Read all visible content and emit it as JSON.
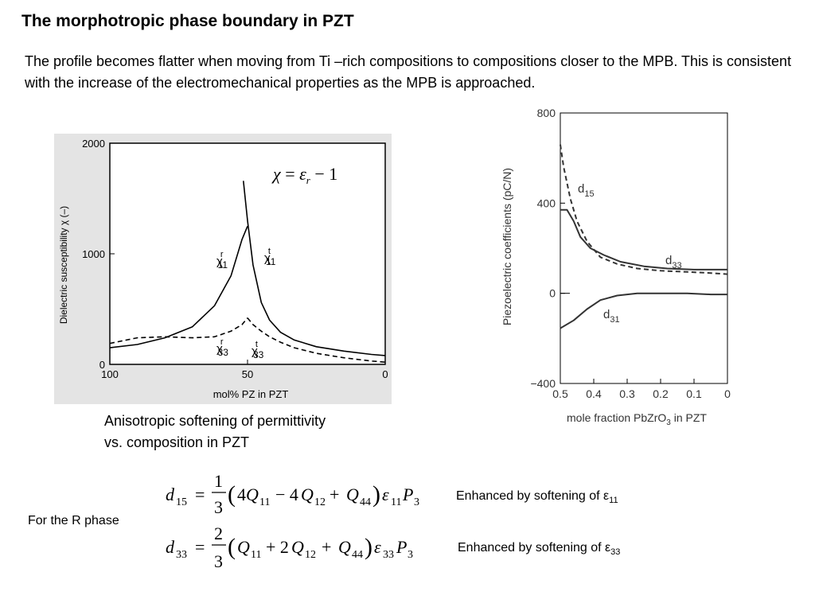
{
  "slide": {
    "title": "The morphotropic phase boundary in PZT",
    "paragraph": "The profile becomes flatter when moving from  Ti –rich compositions to  compositions closer to the MPB. This is consistent with the increase of the electromechanical properties as the MPB is approached.",
    "caption_line1": "Anisotropic softening of permittivity",
    "caption_line2": "vs. composition in PZT",
    "r_phase_label": "For the R phase",
    "note1": "Enhanced by softening of ε",
    "note1_sub": "11",
    "note2": "Enhanced by softening of ε",
    "note2_sub": "33"
  },
  "chart_data": [
    {
      "type": "line",
      "xlabel": "mol% PZ in PZT",
      "ylabel": "Dielectric susceptibility χ (–)",
      "xlim": [
        100,
        0
      ],
      "ylim": [
        0,
        2000
      ],
      "xticks": [
        "100",
        "50",
        "0"
      ],
      "yticks": [
        "0",
        "1000",
        "2000"
      ],
      "annotation": "χ = εr − 1",
      "series": [
        {
          "name": "χ11r",
          "style": "solid",
          "x": [
            100,
            90,
            80,
            70,
            62,
            56,
            52,
            50
          ],
          "y": [
            150,
            180,
            240,
            340,
            530,
            800,
            1130,
            1250
          ]
        },
        {
          "name": "χ11t",
          "style": "solid",
          "x": [
            51.5,
            50,
            48,
            45,
            42,
            38,
            33,
            25,
            15,
            5,
            0
          ],
          "y": [
            1660,
            1300,
            900,
            560,
            400,
            290,
            220,
            160,
            120,
            90,
            80
          ]
        },
        {
          "name": "χ33r",
          "style": "dashed",
          "x": [
            100,
            90,
            80,
            70,
            62,
            56,
            52,
            50
          ],
          "y": [
            190,
            240,
            250,
            240,
            250,
            300,
            360,
            420
          ]
        },
        {
          "name": "χ33t",
          "style": "dashed",
          "x": [
            50,
            48,
            45,
            42,
            38,
            33,
            25,
            15,
            5,
            0
          ],
          "y": [
            420,
            360,
            300,
            250,
            200,
            150,
            100,
            60,
            30,
            20
          ]
        }
      ]
    },
    {
      "type": "line",
      "xlabel": "mole fraction PbZrO3 in PZT",
      "ylabel": "Piezoelectric coefficients (pC/N)",
      "xlim": [
        0.5,
        0
      ],
      "ylim": [
        -400,
        800
      ],
      "xticks": [
        "0.5",
        "0.4",
        "0.3",
        "0.2",
        "0.1",
        "0"
      ],
      "yticks": [
        "−400",
        "0",
        "400",
        "800"
      ],
      "series": [
        {
          "name": "d15",
          "style": "dashed",
          "x": [
            0.5,
            0.49,
            0.47,
            0.45,
            0.42,
            0.38,
            0.33,
            0.27,
            0.2,
            0.12,
            0.05,
            0.0
          ],
          "y": [
            660,
            560,
            420,
            320,
            230,
            160,
            130,
            110,
            100,
            95,
            90,
            85
          ]
        },
        {
          "name": "d33",
          "style": "solid",
          "x": [
            0.5,
            0.48,
            0.46,
            0.44,
            0.41,
            0.37,
            0.32,
            0.25,
            0.18,
            0.1,
            0.05,
            0.0
          ],
          "y": [
            370,
            370,
            320,
            250,
            200,
            170,
            140,
            120,
            110,
            105,
            105,
            105
          ]
        },
        {
          "name": "d31",
          "style": "solid",
          "x": [
            0.5,
            0.46,
            0.42,
            0.38,
            0.33,
            0.27,
            0.2,
            0.12,
            0.05,
            0.0
          ],
          "y": [
            -155,
            -120,
            -70,
            -30,
            -10,
            0,
            0,
            0,
            -5,
            -5
          ]
        }
      ]
    }
  ]
}
